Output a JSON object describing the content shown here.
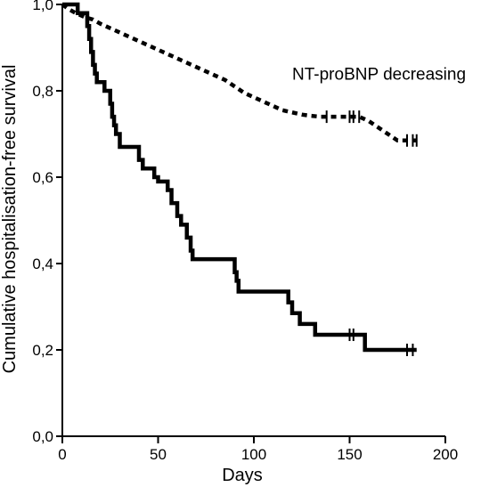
{
  "chart_data": {
    "type": "line",
    "title": "",
    "xlabel": "Days",
    "ylabel": "Cumulative hospitalisation-free survival",
    "xlim": [
      0,
      200
    ],
    "ylim": [
      0,
      1.0
    ],
    "x_ticks": [
      0,
      50,
      100,
      150,
      200
    ],
    "x_tick_labels": [
      "0",
      "50",
      "100",
      "150",
      "200"
    ],
    "y_ticks": [
      0,
      0.2,
      0.4,
      0.6,
      0.8,
      1.0
    ],
    "y_tick_labels": [
      "0,0",
      "0,2",
      "0,4",
      "0,6",
      "0,8",
      "1,0"
    ],
    "grid": false,
    "annotations": [
      {
        "text": "NT-proBNP decreasing",
        "x": 120,
        "y": 0.84
      }
    ],
    "series": [
      {
        "style": "dashed",
        "points": [
          [
            0,
            1.0
          ],
          [
            3,
            0.99
          ],
          [
            7,
            0.98
          ],
          [
            12,
            0.97
          ],
          [
            16,
            0.965
          ],
          [
            20,
            0.955
          ],
          [
            25,
            0.945
          ],
          [
            30,
            0.935
          ],
          [
            35,
            0.925
          ],
          [
            40,
            0.915
          ],
          [
            45,
            0.905
          ],
          [
            50,
            0.895
          ],
          [
            55,
            0.885
          ],
          [
            60,
            0.875
          ],
          [
            65,
            0.865
          ],
          [
            70,
            0.855
          ],
          [
            75,
            0.845
          ],
          [
            80,
            0.835
          ],
          [
            85,
            0.825
          ],
          [
            90,
            0.81
          ],
          [
            95,
            0.795
          ],
          [
            100,
            0.785
          ],
          [
            105,
            0.775
          ],
          [
            110,
            0.765
          ],
          [
            115,
            0.755
          ],
          [
            120,
            0.75
          ],
          [
            125,
            0.745
          ],
          [
            130,
            0.742
          ],
          [
            135,
            0.74
          ],
          [
            140,
            0.74
          ],
          [
            145,
            0.74
          ],
          [
            150,
            0.74
          ],
          [
            155,
            0.74
          ],
          [
            160,
            0.73
          ],
          [
            165,
            0.715
          ],
          [
            170,
            0.7
          ],
          [
            175,
            0.685
          ],
          [
            185,
            0.685
          ]
        ],
        "censor_x": [
          138,
          150,
          152,
          155,
          180,
          183,
          185
        ]
      },
      {
        "style": "solid",
        "steps": [
          [
            0,
            1.0
          ],
          [
            8,
            0.98
          ],
          [
            13,
            0.95
          ],
          [
            14,
            0.92
          ],
          [
            15,
            0.89
          ],
          [
            16,
            0.86
          ],
          [
            17,
            0.84
          ],
          [
            18,
            0.82
          ],
          [
            22,
            0.8
          ],
          [
            25,
            0.77
          ],
          [
            26,
            0.74
          ],
          [
            27,
            0.72
          ],
          [
            28,
            0.7
          ],
          [
            30,
            0.67
          ],
          [
            40,
            0.64
          ],
          [
            42,
            0.62
          ],
          [
            48,
            0.6
          ],
          [
            50,
            0.59
          ],
          [
            55,
            0.57
          ],
          [
            57,
            0.54
          ],
          [
            60,
            0.51
          ],
          [
            62,
            0.49
          ],
          [
            65,
            0.46
          ],
          [
            67,
            0.43
          ],
          [
            68,
            0.41
          ],
          [
            90,
            0.38
          ],
          [
            91,
            0.36
          ],
          [
            92,
            0.335
          ],
          [
            118,
            0.31
          ],
          [
            120,
            0.285
          ],
          [
            124,
            0.26
          ],
          [
            132,
            0.235
          ],
          [
            158,
            0.2
          ],
          [
            185,
            0.2
          ]
        ],
        "censor_x": [
          150,
          152,
          180,
          183
        ]
      }
    ]
  }
}
